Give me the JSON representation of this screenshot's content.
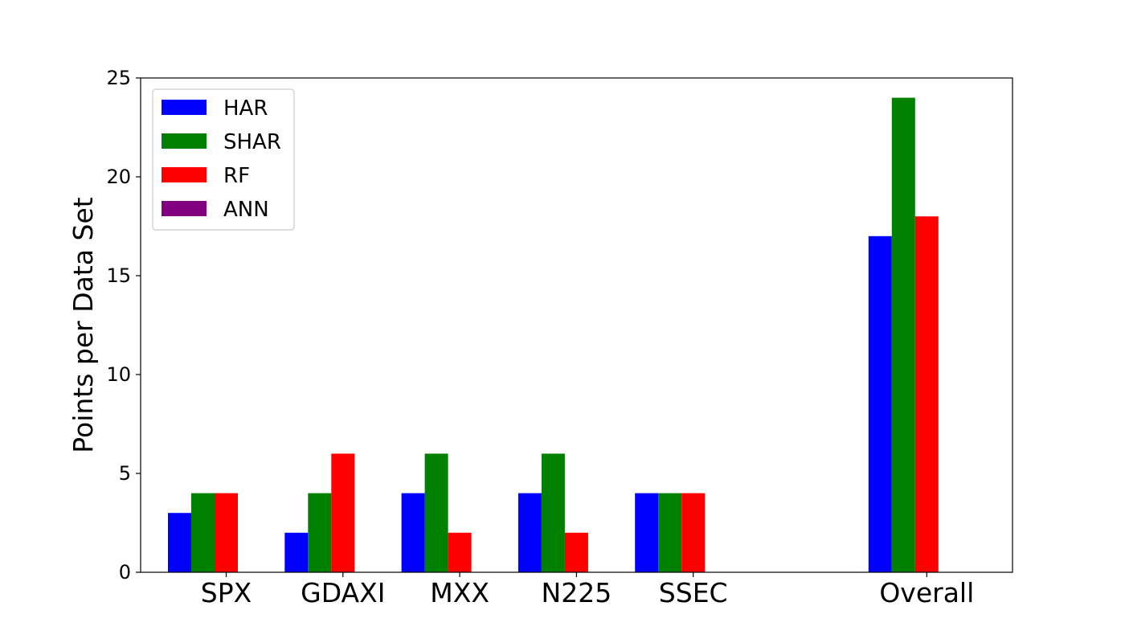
{
  "chart_data": {
    "type": "bar",
    "title": "",
    "xlabel": "",
    "ylabel": "Points per Data Set",
    "ylim": [
      0,
      25
    ],
    "yticks": [
      0,
      5,
      10,
      15,
      20,
      25
    ],
    "categories": [
      "SPX",
      "GDAXI",
      "MXX",
      "N225",
      "SSEC",
      "Overall"
    ],
    "category_positions": [
      0,
      1,
      2,
      3,
      4,
      6
    ],
    "series": [
      {
        "name": "HAR",
        "color": "#0000ff",
        "values": [
          3,
          2,
          4,
          4,
          4,
          17
        ]
      },
      {
        "name": "SHAR",
        "color": "#008000",
        "values": [
          4,
          4,
          6,
          6,
          4,
          24
        ]
      },
      {
        "name": "RF",
        "color": "#ff0000",
        "values": [
          4,
          6,
          2,
          2,
          4,
          18
        ]
      },
      {
        "name": "ANN",
        "color": "#800080",
        "values": [
          0,
          0,
          0,
          0,
          0,
          0
        ]
      }
    ],
    "grid": false,
    "legend_position": "top-left"
  }
}
